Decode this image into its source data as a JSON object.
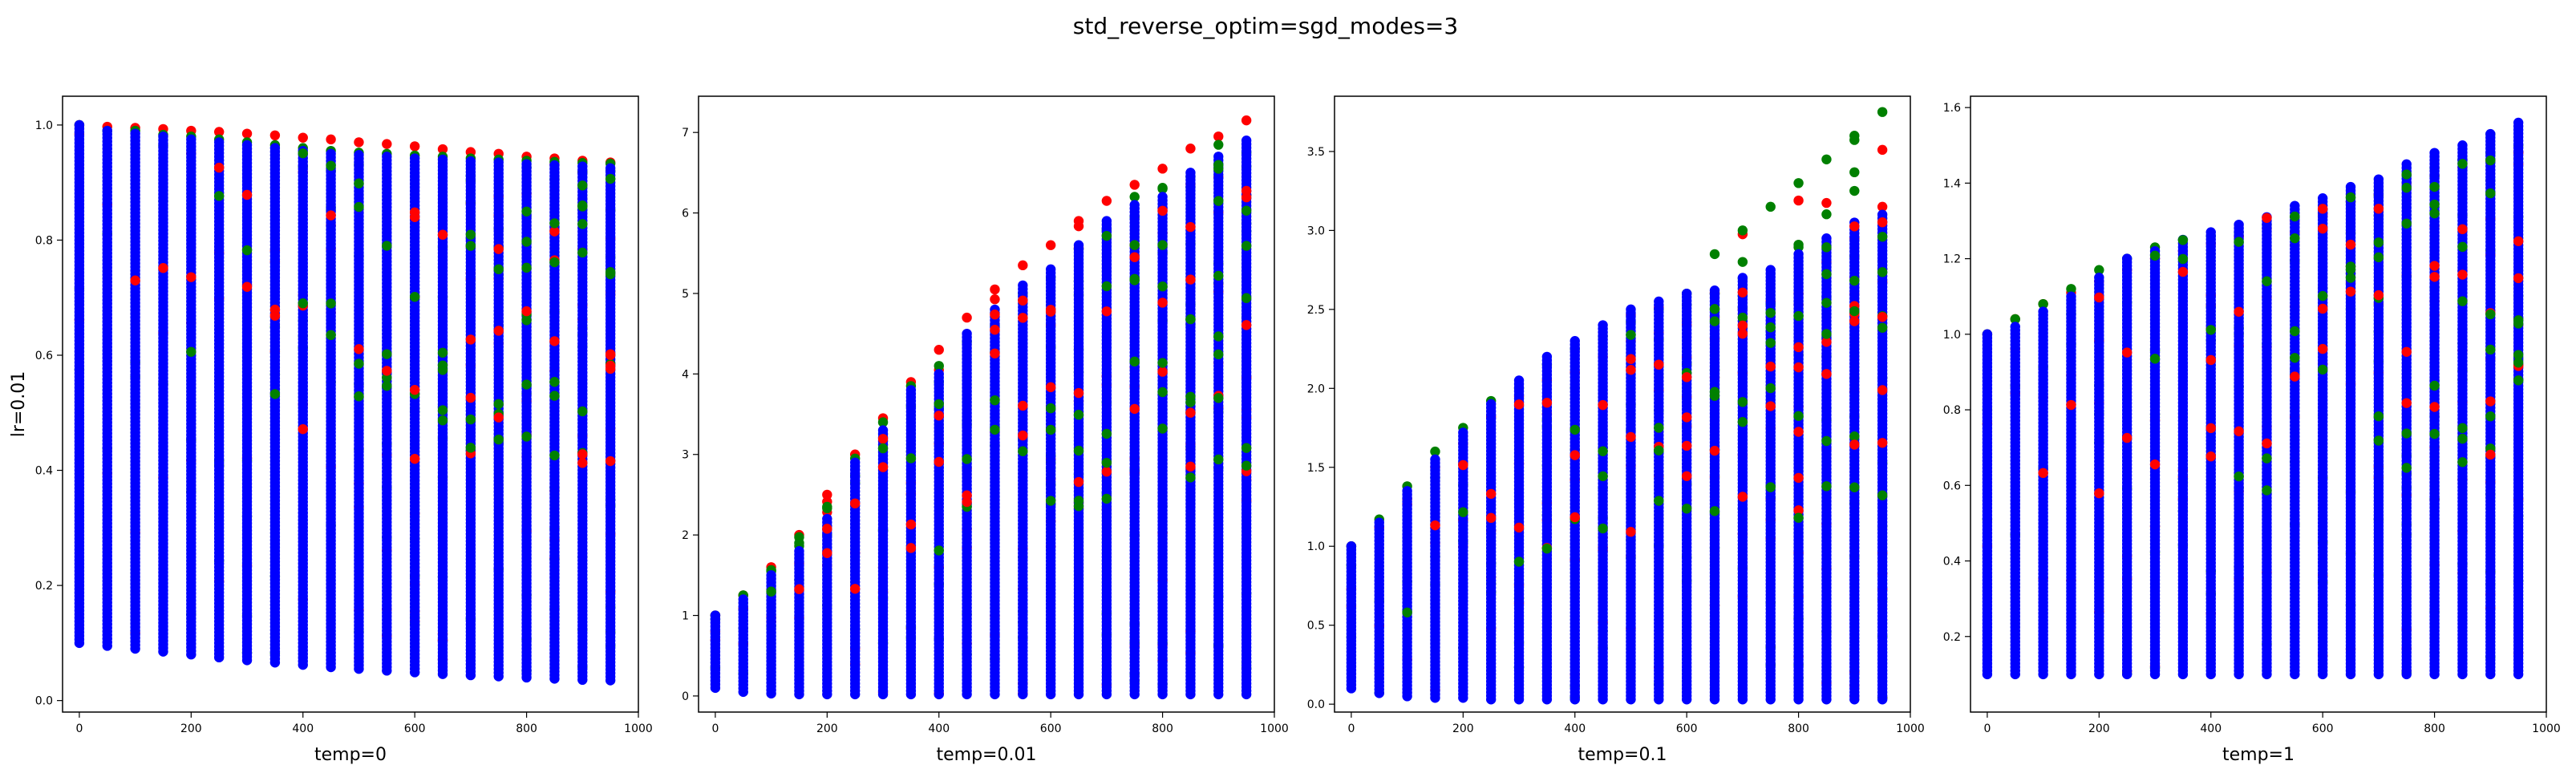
{
  "figure": {
    "suptitle": "std_reverse_optim=sgd_modes=3"
  },
  "colors": {
    "red": "#ff0000",
    "green": "#008000",
    "blue": "#0000ff"
  },
  "chart_data": [
    {
      "type": "scatter",
      "xlabel": "temp=0",
      "ylabel": "lr=0.01",
      "xlim": [
        -30,
        1000
      ],
      "ylim": [
        -0.02,
        1.05
      ],
      "xticks": [
        0,
        200,
        400,
        600,
        800,
        1000
      ],
      "xtick_labels": [
        "0",
        "200",
        "400",
        "600",
        "800",
        "1000"
      ],
      "yticks": [
        0.0,
        0.2,
        0.4,
        0.6,
        0.8,
        1.0
      ],
      "ytick_labels": [
        "0.0",
        "0.2",
        "0.4",
        "0.6",
        "0.8",
        "1.0"
      ],
      "x": [
        0,
        50,
        100,
        150,
        200,
        250,
        300,
        350,
        400,
        450,
        500,
        550,
        600,
        650,
        700,
        750,
        800,
        850,
        900,
        950
      ],
      "blue_min": [
        0.1,
        0.095,
        0.09,
        0.085,
        0.08,
        0.075,
        0.07,
        0.066,
        0.062,
        0.058,
        0.055,
        0.052,
        0.049,
        0.046,
        0.044,
        0.042,
        0.04,
        0.038,
        0.036,
        0.035
      ],
      "blue_max": [
        1.0,
        0.99,
        0.985,
        0.98,
        0.975,
        0.97,
        0.965,
        0.96,
        0.955,
        0.95,
        0.948,
        0.945,
        0.942,
        0.94,
        0.937,
        0.935,
        0.932,
        0.93,
        0.928,
        0.925
      ],
      "green_top": [
        1.0,
        0.99,
        0.99,
        0.983,
        0.98,
        0.975,
        0.97,
        0.965,
        0.96,
        0.955,
        0.952,
        0.95,
        0.947,
        0.945,
        0.942,
        0.94,
        0.938,
        0.936,
        0.934,
        0.933
      ],
      "red_top": [
        1.0,
        0.997,
        0.995,
        0.993,
        0.99,
        0.988,
        0.985,
        0.982,
        0.978,
        0.975,
        0.97,
        0.967,
        0.963,
        0.958,
        0.953,
        0.95,
        0.945,
        0.942,
        0.938,
        0.935
      ]
    },
    {
      "type": "scatter",
      "xlabel": "temp=0.01",
      "ylabel": "",
      "xlim": [
        -30,
        1000
      ],
      "ylim": [
        -0.2,
        7.45
      ],
      "xticks": [
        0,
        200,
        400,
        600,
        800,
        1000
      ],
      "xtick_labels": [
        "0",
        "200",
        "400",
        "600",
        "800",
        "1000"
      ],
      "yticks": [
        0,
        1,
        2,
        3,
        4,
        5,
        6,
        7
      ],
      "ytick_labels": [
        "0",
        "1",
        "2",
        "3",
        "4",
        "5",
        "6",
        "7"
      ],
      "x": [
        0,
        50,
        100,
        150,
        200,
        250,
        300,
        350,
        400,
        450,
        500,
        550,
        600,
        650,
        700,
        750,
        800,
        850,
        900,
        950
      ],
      "blue_min": [
        0.1,
        0.05,
        0.03,
        0.02,
        0.02,
        0.02,
        0.02,
        0.02,
        0.02,
        0.02,
        0.02,
        0.02,
        0.02,
        0.02,
        0.02,
        0.02,
        0.02,
        0.02,
        0.02,
        0.02
      ],
      "blue_max": [
        1.0,
        1.2,
        1.5,
        1.8,
        2.2,
        2.9,
        3.3,
        3.8,
        4.0,
        4.5,
        4.8,
        5.1,
        5.3,
        5.6,
        5.9,
        6.1,
        6.2,
        6.5,
        6.7,
        6.9
      ],
      "green_top": [
        1.0,
        1.25,
        1.55,
        1.9,
        2.35,
        2.95,
        3.4,
        3.85,
        4.1,
        4.4,
        4.6,
        5.0,
        5.2,
        5.55,
        5.8,
        6.2,
        6.3,
        6.45,
        6.6,
        6.75
      ],
      "red_top": [
        1.0,
        1.25,
        1.6,
        2.0,
        2.5,
        3.0,
        3.45,
        3.9,
        4.3,
        4.7,
        5.05,
        5.35,
        5.6,
        5.9,
        6.15,
        6.35,
        6.55,
        6.8,
        6.95,
        7.15
      ]
    },
    {
      "type": "scatter",
      "xlabel": "temp=0.1",
      "ylabel": "",
      "xlim": [
        -30,
        1000
      ],
      "ylim": [
        -0.05,
        3.85
      ],
      "xticks": [
        0,
        200,
        400,
        600,
        800,
        1000
      ],
      "xtick_labels": [
        "0",
        "200",
        "400",
        "600",
        "800",
        "1000"
      ],
      "yticks": [
        0.0,
        0.5,
        1.0,
        1.5,
        2.0,
        2.5,
        3.0,
        3.5
      ],
      "ytick_labels": [
        "0.0",
        "0.5",
        "1.0",
        "1.5",
        "2.0",
        "2.5",
        "3.0",
        "3.5"
      ],
      "x": [
        0,
        50,
        100,
        150,
        200,
        250,
        300,
        350,
        400,
        450,
        500,
        550,
        600,
        650,
        700,
        750,
        800,
        850,
        900,
        950
      ],
      "blue_min": [
        0.1,
        0.07,
        0.05,
        0.04,
        0.04,
        0.03,
        0.03,
        0.03,
        0.03,
        0.03,
        0.03,
        0.03,
        0.03,
        0.03,
        0.03,
        0.03,
        0.03,
        0.03,
        0.03,
        0.03
      ],
      "blue_max": [
        1.0,
        1.15,
        1.35,
        1.55,
        1.72,
        1.9,
        2.05,
        2.2,
        2.3,
        2.4,
        2.5,
        2.55,
        2.6,
        2.62,
        2.7,
        2.75,
        2.85,
        2.95,
        3.05,
        3.1
      ],
      "green_top": [
        1.0,
        1.17,
        1.38,
        1.6,
        1.75,
        1.92,
        2.0,
        2.15,
        2.25,
        2.33,
        2.42,
        2.5,
        2.6,
        2.85,
        3.0,
        3.15,
        3.3,
        3.45,
        3.6,
        3.75
      ],
      "red_top": [
        1.0,
        1.12,
        1.3,
        1.5,
        1.65,
        1.82,
        1.95,
        2.05,
        2.1,
        2.2,
        2.3,
        2.35,
        2.4,
        2.45,
        2.5,
        2.55,
        2.6,
        2.8,
        2.95,
        3.15
      ]
    },
    {
      "type": "scatter",
      "xlabel": "temp=1",
      "ylabel": "",
      "xlim": [
        -30,
        1000
      ],
      "ylim": [
        0.0,
        1.63
      ],
      "xticks": [
        0,
        200,
        400,
        600,
        800,
        1000
      ],
      "xtick_labels": [
        "0",
        "200",
        "400",
        "600",
        "800",
        "1000"
      ],
      "yticks": [
        0.2,
        0.4,
        0.6,
        0.8,
        1.0,
        1.2,
        1.4,
        1.6
      ],
      "ytick_labels": [
        "0.2",
        "0.4",
        "0.6",
        "0.8",
        "1.0",
        "1.2",
        "1.4",
        "1.6"
      ],
      "x": [
        0,
        50,
        100,
        150,
        200,
        250,
        300,
        350,
        400,
        450,
        500,
        550,
        600,
        650,
        700,
        750,
        800,
        850,
        900,
        950
      ],
      "blue_min": [
        0.1,
        0.1,
        0.1,
        0.1,
        0.1,
        0.1,
        0.1,
        0.1,
        0.1,
        0.1,
        0.1,
        0.1,
        0.1,
        0.1,
        0.1,
        0.1,
        0.1,
        0.1,
        0.1,
        0.1
      ],
      "blue_max": [
        1.0,
        1.02,
        1.06,
        1.1,
        1.15,
        1.2,
        1.22,
        1.25,
        1.27,
        1.29,
        1.31,
        1.34,
        1.36,
        1.39,
        1.41,
        1.45,
        1.48,
        1.5,
        1.53,
        1.56
      ],
      "green_top": [
        1.0,
        1.04,
        1.08,
        1.12,
        1.17,
        1.2,
        1.23,
        1.25,
        1.26,
        1.27,
        1.29,
        1.31,
        1.33,
        1.35,
        1.38,
        1.42,
        1.44,
        1.46,
        1.48,
        1.5
      ],
      "red_top": [
        1.0,
        1.04,
        1.08,
        1.11,
        1.14,
        1.17,
        1.2,
        1.22,
        1.24,
        1.26,
        1.28,
        1.3,
        1.32,
        1.35,
        1.37,
        1.4,
        1.42,
        1.44,
        1.46,
        1.48
      ]
    }
  ]
}
